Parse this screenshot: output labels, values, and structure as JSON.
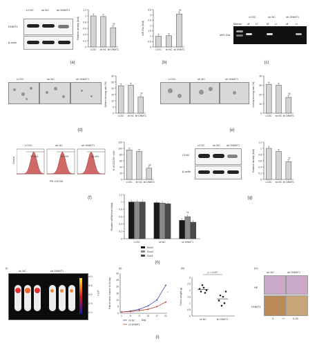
{
  "panels": {
    "a": {
      "caption": "(a)",
      "blot_groups": [
        "LCSC",
        "sh NC",
        "sh DNMT1"
      ],
      "blot_rows": [
        "DNMT1",
        "β-actin"
      ],
      "chart_ylabel": "Relative density (fold)",
      "chart_categories": [
        "LCSC",
        "sh NC",
        "sh DNMT1"
      ],
      "chart_values": [
        1.0,
        0.98,
        0.62
      ],
      "chart_ylim": [
        0,
        1.2
      ],
      "ticks": [
        "0",
        "0.2",
        "0.4",
        "0.6",
        "0.8",
        "1",
        "1.2"
      ],
      "sig": "*#"
    },
    "b": {
      "caption": "(b)",
      "chart_ylabel": "miR-34a (fold)",
      "chart_categories": [
        "LCSC",
        "sh NC",
        "sh DNMT1"
      ],
      "chart_values": [
        1.0,
        1.05,
        3.1
      ],
      "chart_ylim": [
        0,
        3.5
      ],
      "ticks": [
        "0",
        "0.5",
        "1",
        "1.5",
        "2",
        "2.5",
        "3",
        "3.5"
      ],
      "sig": "*#"
    },
    "c": {
      "caption": "(c)",
      "gel_row": "miR-34a",
      "gel_marker": "Marker",
      "gel_groups": [
        "LCSC",
        "sh NC",
        "sh DNMT1"
      ],
      "gel_lanes": [
        "M",
        "U",
        "M",
        "U",
        "M",
        "U"
      ]
    },
    "d": {
      "caption": "(d)",
      "images": [
        "LCSC",
        "sh NC",
        "sh DNMT1"
      ],
      "chart_ylabel": "Sphere forming rate (%)",
      "chart_categories": [
        "LCSC",
        "sh NC",
        "sh DNMT1"
      ],
      "chart_values": [
        22,
        22.5,
        13
      ],
      "chart_ylim": [
        0,
        30
      ],
      "ticks": [
        "0",
        "5",
        "10",
        "15",
        "20",
        "25",
        "30"
      ],
      "sig": "*#"
    },
    "e": {
      "caption": "(e)",
      "images": [
        "LCSC",
        "sh NC",
        "sh DNMT1"
      ],
      "chart_ylabel": "Colony forming rate (%)",
      "chart_categories": [
        "LCSC",
        "sh NC",
        "sh DNMT1"
      ],
      "chart_values": [
        31,
        30,
        17
      ],
      "chart_ylim": [
        0,
        40
      ],
      "ticks": [
        "0",
        "10",
        "20",
        "30",
        "40"
      ],
      "sig": "*#"
    },
    "f": {
      "caption": "(f)",
      "flow_groups": [
        "LCSC",
        "sh NC",
        "sh DNMT1"
      ],
      "flow_percents": [
        "97.5%",
        "90.3%",
        "36.6%"
      ],
      "flow_xlabel": "PE-CD133",
      "flow_ylabel": "Count",
      "chart_ylabel": "% of CD133+ cells",
      "chart_categories": [
        "LCSC",
        "sh NC",
        "sh DNMT1"
      ],
      "chart_values": [
        95,
        90,
        36
      ],
      "chart_ylim": [
        0,
        120
      ],
      "ticks": [
        "0",
        "20",
        "40",
        "60",
        "80",
        "100",
        "120"
      ],
      "sig": "*#"
    },
    "g": {
      "caption": "(g)",
      "blot_groups": [
        "LCSC",
        "sh NC",
        "sh DNMT1"
      ],
      "blot_rows": [
        "CD44",
        "β-actin"
      ],
      "chart_ylabel": "Relative density (fold)",
      "chart_categories": [
        "LCSC",
        "sh NC",
        "sh DNMT1"
      ],
      "chart_values": [
        1.0,
        0.9,
        0.57
      ],
      "chart_ylim": [
        0,
        1.2
      ],
      "ticks": [
        "0",
        "0.2",
        "0.4",
        "0.6",
        "0.8",
        "1",
        "1.2"
      ],
      "sig": "*#"
    },
    "h": {
      "caption": "(h)",
      "chart_ylabel": "Relative mRNA level (fold)",
      "chart_categories": [
        "LCSC",
        "sh NC",
        "sh DNMT1"
      ],
      "series_names": [
        "Bmi1",
        "Sox2",
        "Oct4"
      ],
      "series_colors": [
        "#1a1a1a",
        "#8a8a8a",
        "#4a4a4a"
      ],
      "bmi1": [
        1.0,
        0.98,
        0.5
      ],
      "sox2": [
        1.0,
        0.97,
        0.6
      ],
      "oct4": [
        1.0,
        0.95,
        0.45
      ],
      "chart_ylim": [
        0,
        1.2
      ],
      "ticks": [
        "0",
        "0.2",
        "0.4",
        "0.6",
        "0.8",
        "1",
        "1.2"
      ],
      "sig": "*#"
    },
    "i": {
      "caption": "(i)",
      "i_label": "(i)",
      "ii_label": "(ii)",
      "iii_label": "(iii)",
      "iv_label": "(iv)",
      "imaging_groups": [
        "sh NC",
        "sh DNMT1"
      ],
      "colorbar_ticks": [
        "4.0",
        "3.5",
        "3.0",
        "2.5",
        "2.0"
      ],
      "colorbar_unit": "×10⁶",
      "growth_xlabel": "Day",
      "growth_ylabel": "Fold of tumor volume to 1st day",
      "growth_days": [
        "1",
        "5",
        "9",
        "13",
        "17",
        "21"
      ],
      "growth_series": [
        "sh NC",
        "sh DNMT1"
      ],
      "growth_colors": [
        "#3a4fb0",
        "#c0392b"
      ],
      "growth_nc": [
        1,
        1.6,
        3,
        5.5,
        10,
        21
      ],
      "growth_dnmt1": [
        1,
        1.3,
        2,
        3,
        5,
        8.5
      ],
      "growth_ylim": [
        0,
        30
      ],
      "growth_ticks": [
        "0",
        "5",
        "10",
        "15",
        "20",
        "25",
        "30"
      ],
      "growth_sig": "*",
      "weight_ylabel": "Tumor weight (g)",
      "weight_categories": [
        "sh NC",
        "sh DNMT1"
      ],
      "weight_nc": [
        2.1,
        1.9,
        2.4,
        2.2,
        1.8,
        2.0
      ],
      "weight_dnmt1": [
        1.2,
        1.6,
        0.8,
        1.5,
        1.0,
        1.9
      ],
      "weight_ylim": [
        0,
        3
      ],
      "weight_ticks": [
        "0",
        "0.5",
        "1",
        "1.5",
        "2",
        "2.5",
        "3"
      ],
      "weight_p": "p = 0.027",
      "ihc_groups": [
        "sh NC",
        "sh DNMT1"
      ],
      "ihc_rows": [
        "HE",
        "DNMT1"
      ],
      "ihc_scores": [
        "3",
        "++",
        "0.25"
      ]
    }
  }
}
